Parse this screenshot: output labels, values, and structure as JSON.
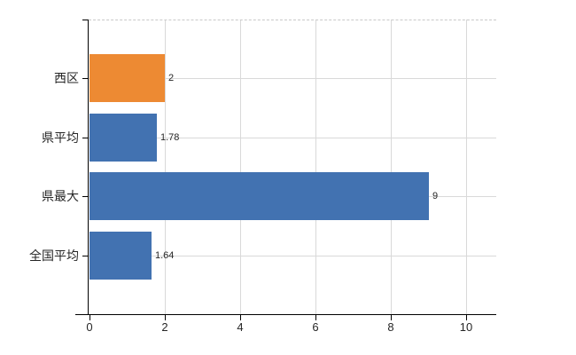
{
  "chart_data": {
    "type": "bar",
    "orientation": "horizontal",
    "title": "",
    "xlabel": "",
    "ylabel": "",
    "categories": [
      "西区",
      "県平均",
      "県最大",
      "全国平均"
    ],
    "values": [
      2,
      1.78,
      9,
      1.64
    ],
    "value_labels": [
      "2",
      "1.78",
      "9",
      "1.64"
    ],
    "highlighted_category": "西区",
    "bar_colors": [
      "#ED8A33",
      "#4272B1",
      "#4272B1",
      "#4272B1"
    ],
    "xticks": [
      0,
      2,
      4,
      6,
      8,
      10
    ],
    "xtick_labels": [
      "0",
      "2",
      "4",
      "6",
      "8",
      "10"
    ],
    "xlim": [
      0,
      10.8
    ],
    "grid": true,
    "legend": false,
    "colors": {
      "highlight_bar": "#ED8A33",
      "default_bar": "#4272B1",
      "grid_line": "#D9D9D9",
      "top_border": "#C9C9C9",
      "axis_line": "#000000",
      "text": "#262626"
    }
  }
}
